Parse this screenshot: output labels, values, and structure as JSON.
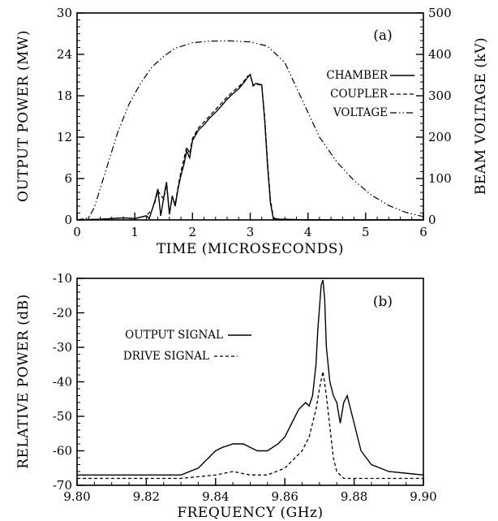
{
  "chart_data": [
    {
      "type": "line",
      "panel_label": "(a)",
      "xlabel": "TIME (MICROSECONDS)",
      "ylabel": "OUTPUT POWER (MW)",
      "ylabel_right": "BEAM VOLTAGE (kV)",
      "xlim": [
        0,
        6
      ],
      "ylim": [
        0,
        30
      ],
      "ylim_right": [
        0,
        500
      ],
      "x_ticks": [
        "0",
        "1",
        "2",
        "3",
        "4",
        "5",
        "6"
      ],
      "y_ticks": [
        "0",
        "6",
        "12",
        "18",
        "24",
        "30"
      ],
      "y_ticks_right": [
        "0",
        "100",
        "200",
        "300",
        "400",
        "500"
      ],
      "grid": false,
      "legend_position": "right",
      "series": [
        {
          "name": "CHAMBER",
          "style": "solid",
          "axis": "left",
          "x": [
            0,
            0.4,
            0.8,
            1.0,
            1.2,
            1.25,
            1.3,
            1.35,
            1.4,
            1.45,
            1.5,
            1.55,
            1.6,
            1.65,
            1.7,
            1.75,
            1.8,
            1.85,
            1.9,
            1.95,
            2.0,
            2.1,
            2.2,
            2.3,
            2.4,
            2.5,
            2.6,
            2.7,
            2.8,
            2.9,
            2.95,
            3.0,
            3.05,
            3.1,
            3.2,
            3.25,
            3.3,
            3.35,
            3.4,
            3.5,
            4.0,
            5.0,
            6.0
          ],
          "y": [
            0,
            0.1,
            0.3,
            0.2,
            0.6,
            0.2,
            1.5,
            2.8,
            4.5,
            0.6,
            3.2,
            5.5,
            0.8,
            3.5,
            2.0,
            4.5,
            6.5,
            8.0,
            10.0,
            9.0,
            11.5,
            13.0,
            13.8,
            14.8,
            15.6,
            16.5,
            17.5,
            18.3,
            19.0,
            20.0,
            20.6,
            21.1,
            19.5,
            19.8,
            19.6,
            14.5,
            8.0,
            2.5,
            0.2,
            0.1,
            0.0,
            0.0,
            0.0
          ]
        },
        {
          "name": "COUPLER",
          "style": "dashed",
          "axis": "left",
          "x": [
            0,
            0.4,
            0.8,
            1.0,
            1.2,
            1.3,
            1.35,
            1.4,
            1.5,
            1.55,
            1.6,
            1.65,
            1.7,
            1.75,
            1.8,
            1.85,
            1.9,
            1.95,
            2.0,
            2.1,
            2.2,
            2.3,
            2.4,
            2.5,
            2.6,
            2.7,
            2.8,
            2.9,
            2.95,
            3.0,
            3.05,
            3.1,
            3.2,
            3.25,
            3.3,
            3.35,
            3.4,
            3.5,
            4.0,
            5.0,
            6.0
          ],
          "y": [
            0,
            0.1,
            0.3,
            0.2,
            0.6,
            1.5,
            2.6,
            4.2,
            3.0,
            5.2,
            0.9,
            3.4,
            2.2,
            4.8,
            7.0,
            8.8,
            10.6,
            9.6,
            11.8,
            13.3,
            14.2,
            15.1,
            16.0,
            16.9,
            17.8,
            18.6,
            19.3,
            20.2,
            20.8,
            21.0,
            19.4,
            19.7,
            19.5,
            15.0,
            8.5,
            3.0,
            0.3,
            0.1,
            0.0,
            0.0,
            0.0
          ]
        },
        {
          "name": "VOLTAGE",
          "style": "dash-dot-dot",
          "axis": "right",
          "x": [
            0,
            0.2,
            0.3,
            0.5,
            0.7,
            0.9,
            1.1,
            1.3,
            1.5,
            1.7,
            2.0,
            2.3,
            2.6,
            3.0,
            3.3,
            3.6,
            3.8,
            4.0,
            4.2,
            4.5,
            4.8,
            5.1,
            5.4,
            5.7,
            6.0
          ],
          "y": [
            0,
            5,
            30,
            120,
            210,
            280,
            330,
            370,
            395,
            415,
            428,
            432,
            433,
            430,
            420,
            380,
            320,
            260,
            200,
            140,
            95,
            60,
            35,
            18,
            8
          ]
        }
      ]
    },
    {
      "type": "line",
      "panel_label": "(b)",
      "xlabel": "FREQUENCY (GHz)",
      "ylabel": "RELATIVE POWER (dB)",
      "xlim": [
        9.8,
        9.9
      ],
      "ylim": [
        -70,
        -10
      ],
      "x_ticks": [
        "9.80",
        "9.82",
        "9.84",
        "9.86",
        "9.88",
        "9.90"
      ],
      "y_ticks": [
        "-10",
        "-20",
        "-30",
        "-40",
        "-50",
        "-60",
        "-70"
      ],
      "grid": false,
      "legend_position": "left",
      "series": [
        {
          "name": "OUTPUT SIGNAL",
          "style": "solid",
          "x": [
            9.8,
            9.81,
            9.82,
            9.83,
            9.835,
            9.838,
            9.84,
            9.842,
            9.845,
            9.848,
            9.85,
            9.852,
            9.855,
            9.858,
            9.86,
            9.862,
            9.864,
            9.866,
            9.867,
            9.868,
            9.869,
            9.8695,
            9.8705,
            9.871,
            9.8715,
            9.872,
            9.873,
            9.874,
            9.875,
            9.876,
            9.877,
            9.878,
            9.879,
            9.88,
            9.882,
            9.885,
            9.89,
            9.9
          ],
          "y": [
            -67,
            -67,
            -67,
            -67,
            -65,
            -62,
            -60,
            -59,
            -58,
            -58,
            -59,
            -60,
            -60,
            -58,
            -56,
            -52,
            -48,
            -46,
            -47,
            -44,
            -35,
            -25,
            -12,
            -10.5,
            -16,
            -30,
            -40,
            -44,
            -46,
            -52,
            -46,
            -44,
            -48,
            -52,
            -60,
            -64,
            -66,
            -67
          ]
        },
        {
          "name": "DRIVE SIGNAL",
          "style": "dashed",
          "x": [
            9.8,
            9.83,
            9.84,
            9.845,
            9.85,
            9.855,
            9.86,
            9.862,
            9.865,
            9.867,
            9.869,
            9.87,
            9.871,
            9.872,
            9.873,
            9.874,
            9.875,
            9.877,
            9.88,
            9.9
          ],
          "y": [
            -68,
            -68,
            -67,
            -66,
            -67,
            -67,
            -65,
            -63,
            -60,
            -56,
            -48,
            -42,
            -37,
            -44,
            -53,
            -62,
            -66,
            -68,
            -68,
            -68
          ]
        }
      ]
    }
  ]
}
